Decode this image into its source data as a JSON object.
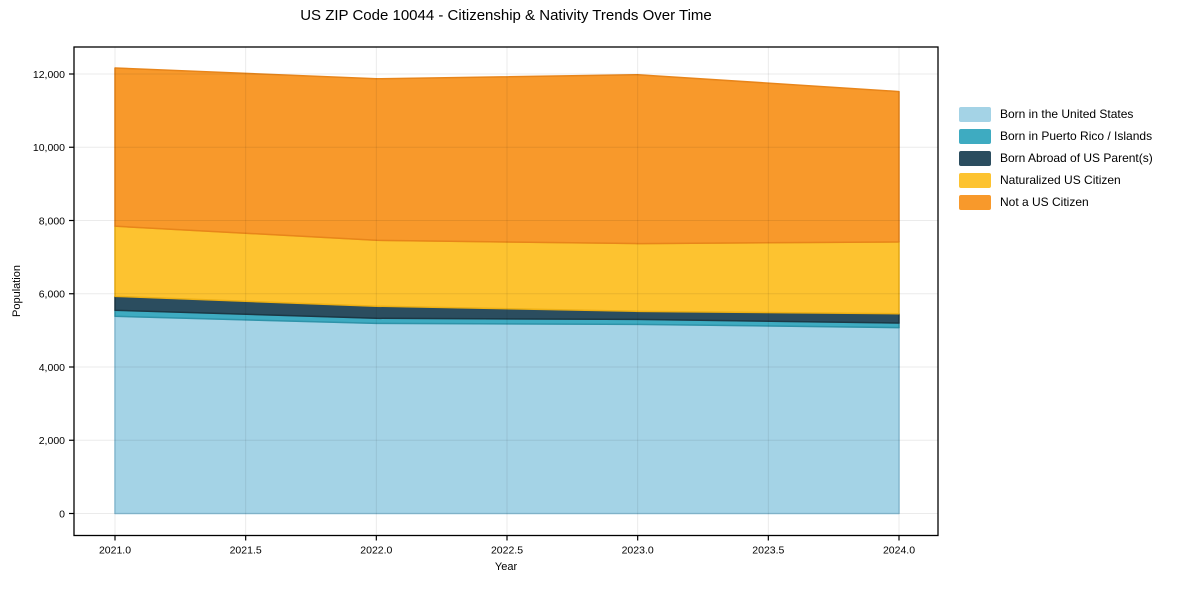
{
  "chart_data": {
    "type": "area",
    "stacked": true,
    "title": "US ZIP Code 10044 - Citizenship & Nativity Trends Over Time",
    "xlabel": "Year",
    "ylabel": "Population",
    "x": [
      2021,
      2022,
      2023,
      2024
    ],
    "series": [
      {
        "name": "Born in the United States",
        "color": "#a4d3e6",
        "edge": "#8bc2da",
        "values": [
          5385,
          5190,
          5165,
          5075
        ]
      },
      {
        "name": "Born in Puerto Rico / Islands",
        "color": "#3eabc1",
        "edge": "#2e93a9",
        "values": [
          165,
          140,
          135,
          125
        ]
      },
      {
        "name": "Born Abroad of US Parent(s)",
        "color": "#2b4d5f",
        "edge": "#1c3845",
        "values": [
          380,
          330,
          220,
          255
        ]
      },
      {
        "name": "Naturalized US Citizen",
        "color": "#fdc330",
        "edge": "#eeb014",
        "values": [
          1915,
          1800,
          1850,
          1960
        ]
      },
      {
        "name": "Not a US Citizen",
        "color": "#f8992b",
        "edge": "#e8851a",
        "values": [
          4320,
          4410,
          4610,
          4105
        ]
      }
    ],
    "x_ticks": [
      {
        "v": 2021.0,
        "label": "2021.0"
      },
      {
        "v": 2021.5,
        "label": "2021.5"
      },
      {
        "v": 2022.0,
        "label": "2022.0"
      },
      {
        "v": 2022.5,
        "label": "2022.5"
      },
      {
        "v": 2023.0,
        "label": "2023.0"
      },
      {
        "v": 2023.5,
        "label": "2023.5"
      },
      {
        "v": 2024.0,
        "label": "2024.0"
      }
    ],
    "y_ticks": [
      {
        "v": 0,
        "label": "0"
      },
      {
        "v": 2000,
        "label": "2,000"
      },
      {
        "v": 4000,
        "label": "4,000"
      },
      {
        "v": 6000,
        "label": "6,000"
      },
      {
        "v": 8000,
        "label": "8,000"
      },
      {
        "v": 10000,
        "label": "10,000"
      },
      {
        "v": 12000,
        "label": "12,000"
      }
    ],
    "ylim": [
      0,
      12000
    ],
    "legend_position": "right",
    "grid": true,
    "colors": {
      "background": "#ffffff",
      "spine": "#000000",
      "gridline": "rgba(0,0,0,0.08)"
    }
  }
}
